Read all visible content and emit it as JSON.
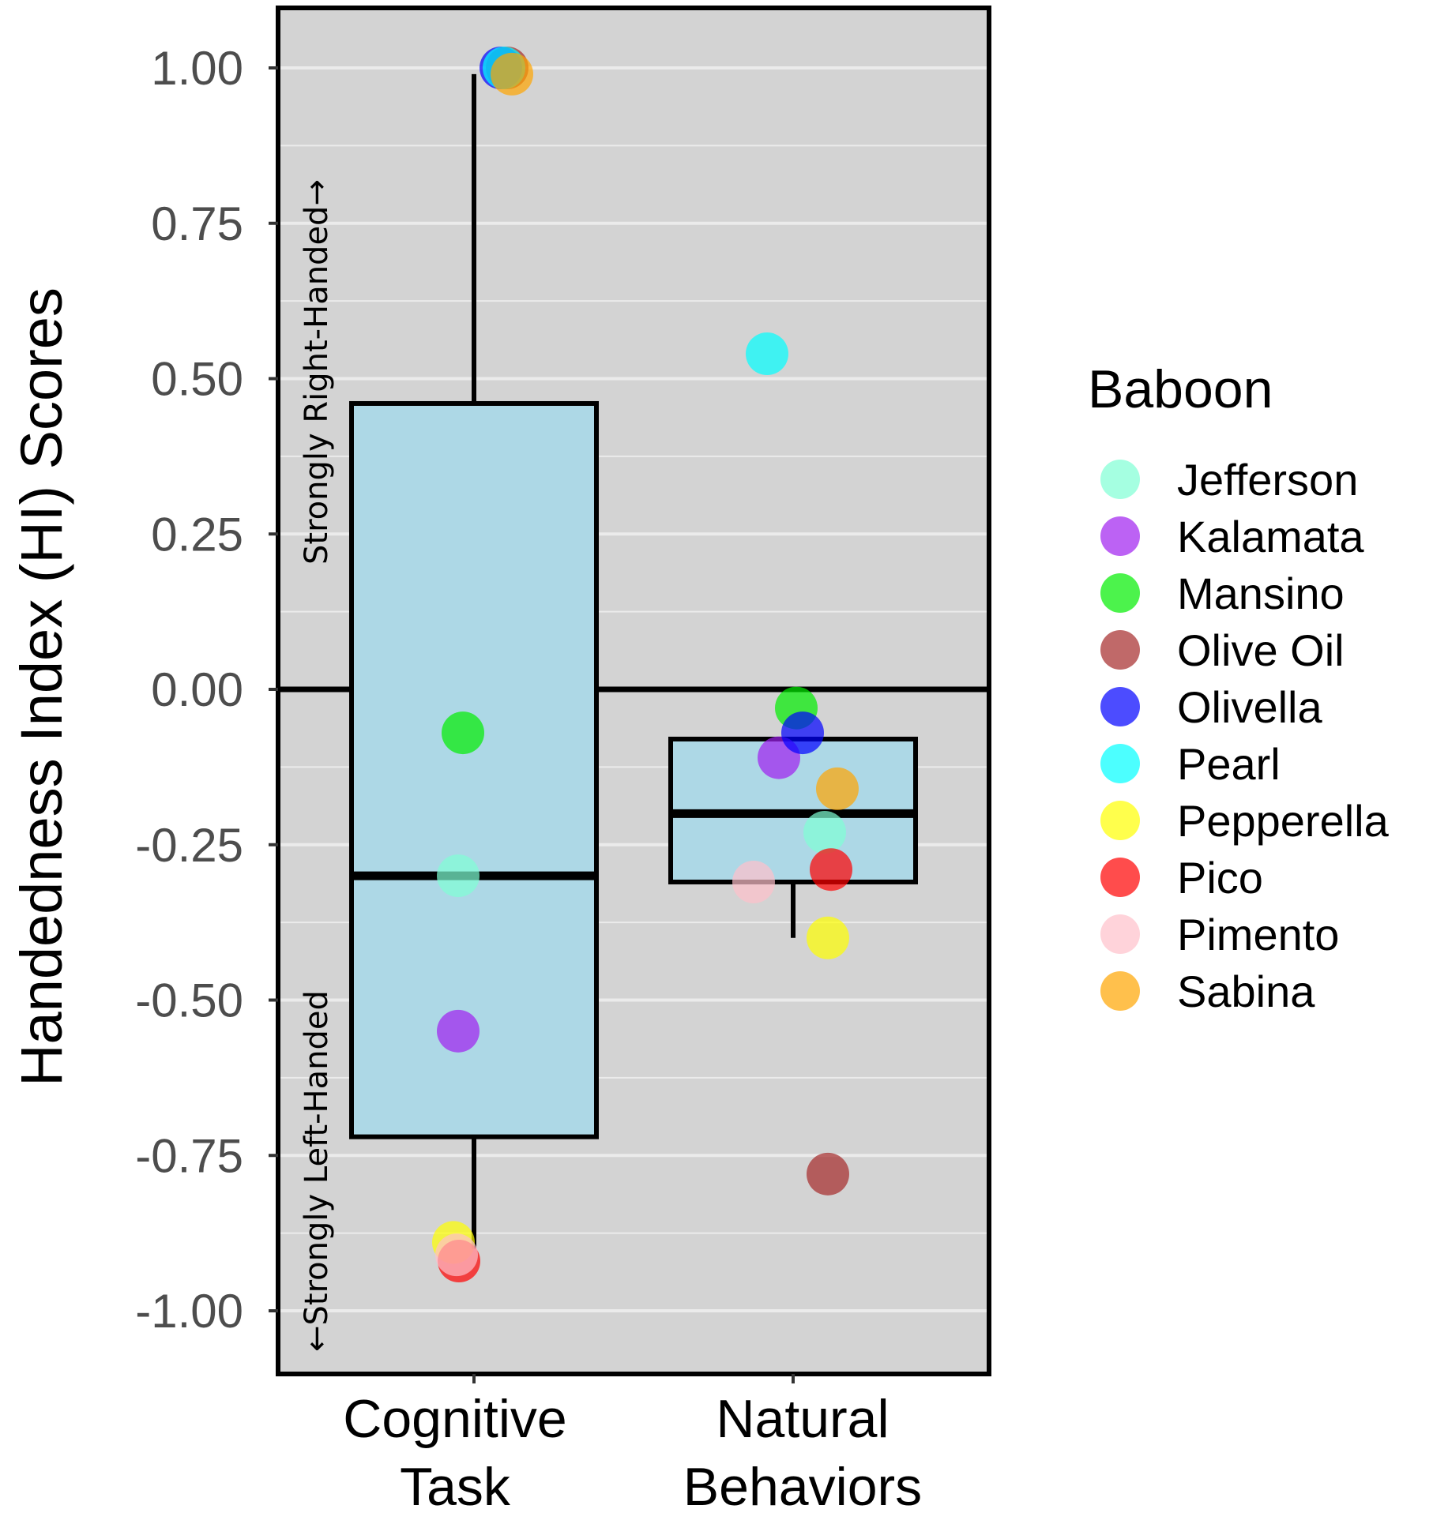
{
  "chart_data": {
    "type": "box",
    "ylabel": "Handedness Index (HI) Scores",
    "xlabel": "",
    "ylim": [
      -1.09,
      1.09
    ],
    "grid": true,
    "zero_line": 0,
    "yticks": [
      1.0,
      0.75,
      0.5,
      0.25,
      0.0,
      -0.25,
      -0.5,
      -0.75,
      -1.0
    ],
    "ytick_labels": [
      "1.00",
      "0.75",
      "0.50",
      "0.25",
      "0.00",
      "-0.25",
      "-0.50",
      "-0.75",
      "-1.00"
    ],
    "categories": [
      {
        "id": "cognitive",
        "lines": [
          "Cognitive",
          "Task"
        ]
      },
      {
        "id": "natural",
        "lines": [
          "Natural",
          "Behaviors"
        ]
      }
    ],
    "boxes": [
      {
        "category": "cognitive",
        "whisker_low": -0.9,
        "q1": -0.72,
        "median": -0.3,
        "q3": 0.46,
        "whisker_high": 0.99
      },
      {
        "category": "natural",
        "whisker_low": -0.4,
        "q1": -0.31,
        "median": -0.2,
        "q3": -0.08,
        "whisker_high": -0.08
      }
    ],
    "annotations": {
      "top": "Strongly Right-Handed→",
      "bottom": "←Strongly Left-Handed"
    },
    "legend": {
      "title": "Baboon",
      "position": "right",
      "entries": [
        {
          "name": "Jefferson",
          "color": "#7FFFD4"
        },
        {
          "name": "Kalamata",
          "color": "#A020F0"
        },
        {
          "name": "Mansino",
          "color": "#00EE00"
        },
        {
          "name": "Olive Oil",
          "color": "#A52A2A"
        },
        {
          "name": "Olivella",
          "color": "#0000FF"
        },
        {
          "name": "Pearl",
          "color": "#00FFFF"
        },
        {
          "name": "Pepperella",
          "color": "#FFFF00"
        },
        {
          "name": "Pico",
          "color": "#FF0000"
        },
        {
          "name": "Pimento",
          "color": "#FFC0CB"
        },
        {
          "name": "Sabina",
          "color": "#FFA500"
        }
      ]
    },
    "points": [
      {
        "category": "cognitive",
        "baboon": "Jefferson",
        "y": -0.3
      },
      {
        "category": "cognitive",
        "baboon": "Kalamata",
        "y": -0.55
      },
      {
        "category": "cognitive",
        "baboon": "Mansino",
        "y": -0.07
      },
      {
        "category": "cognitive",
        "baboon": "Olive Oil",
        "y": 1.0
      },
      {
        "category": "cognitive",
        "baboon": "Olivella",
        "y": 1.0
      },
      {
        "category": "cognitive",
        "baboon": "Pearl",
        "y": 1.0
      },
      {
        "category": "cognitive",
        "baboon": "Pepperella",
        "y": -0.89
      },
      {
        "category": "cognitive",
        "baboon": "Pico",
        "y": -0.92
      },
      {
        "category": "cognitive",
        "baboon": "Pimento",
        "y": -0.91
      },
      {
        "category": "cognitive",
        "baboon": "Sabina",
        "y": 0.99
      },
      {
        "category": "natural",
        "baboon": "Jefferson",
        "y": -0.23
      },
      {
        "category": "natural",
        "baboon": "Kalamata",
        "y": -0.11
      },
      {
        "category": "natural",
        "baboon": "Mansino",
        "y": -0.03
      },
      {
        "category": "natural",
        "baboon": "Olive Oil",
        "y": -0.78
      },
      {
        "category": "natural",
        "baboon": "Olivella",
        "y": -0.07
      },
      {
        "category": "natural",
        "baboon": "Pearl",
        "y": 0.54
      },
      {
        "category": "natural",
        "baboon": "Pepperella",
        "y": -0.4
      },
      {
        "category": "natural",
        "baboon": "Pico",
        "y": -0.29
      },
      {
        "category": "natural",
        "baboon": "Pimento",
        "y": -0.31
      },
      {
        "category": "natural",
        "baboon": "Sabina",
        "y": -0.16
      }
    ],
    "colors": {
      "panel_background": "#D3D3D3",
      "box_fill": "#ADD8E6",
      "grid": "#EBEBEB",
      "outline": "#000000"
    }
  }
}
